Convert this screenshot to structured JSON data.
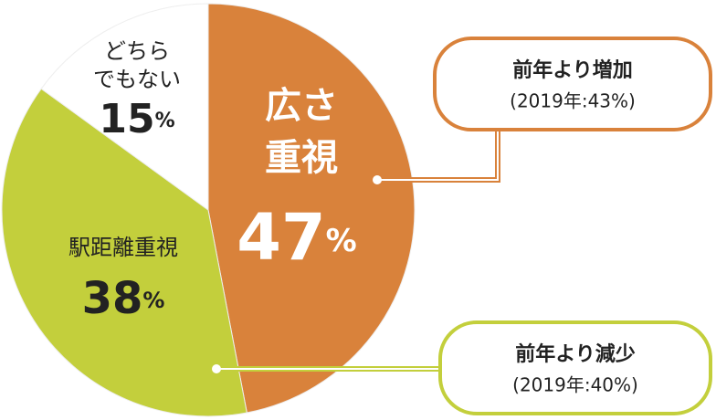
{
  "chart_data": {
    "type": "pie",
    "categories": [
      [
        "広さ",
        "重視"
      ],
      [
        "駅距離重視"
      ],
      [
        "どちら",
        "でもない"
      ]
    ],
    "values": [
      47,
      38,
      15
    ],
    "unit": "%",
    "colors": [
      "#d9823b",
      "#c3cf3c",
      "#ffffff"
    ],
    "label_colors": [
      "#ffffff",
      "#222222",
      "#222222"
    ],
    "annotations": [
      {
        "title": "前年より増加",
        "note": "(2019年:43%)",
        "color": "#d9823b"
      },
      {
        "title": "前年より減少",
        "note": "(2019年:40%)",
        "color": "#c3cf3c"
      }
    ]
  }
}
